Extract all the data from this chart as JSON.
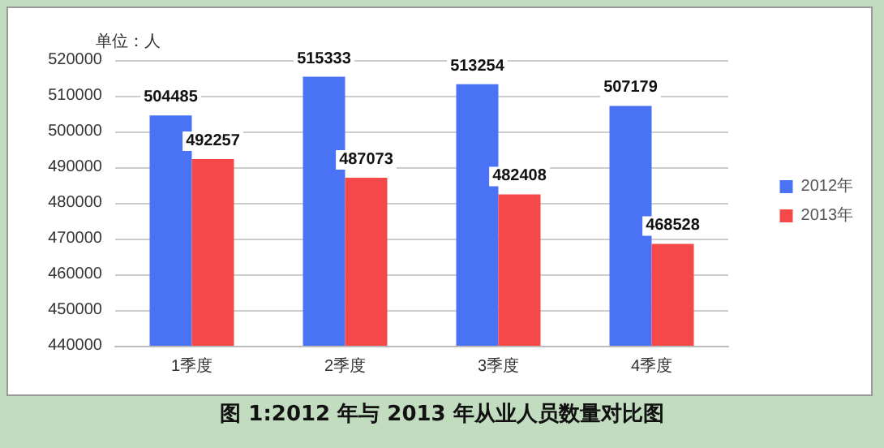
{
  "chart_data": {
    "type": "bar",
    "title": "图 1:2012 年与 2013 年从业人员数量对比图",
    "ylabel": "单位：人",
    "categories": [
      "1季度",
      "2季度",
      "3季度",
      "4季度"
    ],
    "series": [
      {
        "name": "2012年",
        "color": "#4a72f5",
        "values": [
          504485,
          515333,
          513254,
          507179
        ]
      },
      {
        "name": "2013年",
        "color": "#f54848",
        "values": [
          492257,
          487073,
          482408,
          468528
        ]
      }
    ],
    "ylim": [
      440000,
      520000
    ],
    "yticks": [
      440000,
      450000,
      460000,
      470000,
      480000,
      490000,
      500000,
      510000,
      520000
    ],
    "grid": "y",
    "legend": "right",
    "data_labels": true
  }
}
